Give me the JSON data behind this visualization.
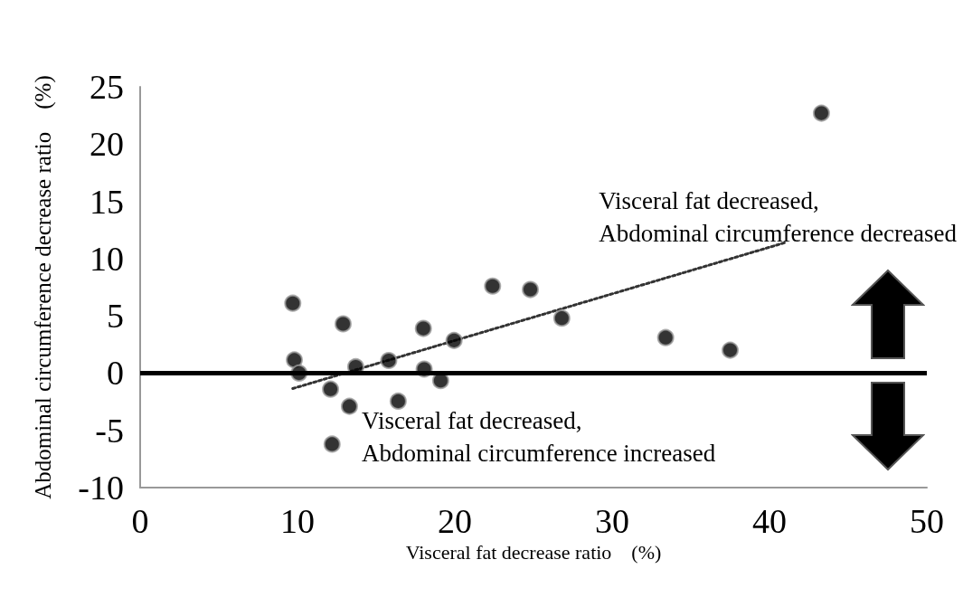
{
  "chart_data": {
    "type": "scatter",
    "xlabel": "Visceral fat decrease ratio　(%)",
    "ylabel": "Abdominal circumference decrease ratio　(%)",
    "x": [
      9.7,
      9.8,
      10.1,
      12.9,
      13.7,
      12.1,
      13.3,
      12.2,
      15.8,
      16.4,
      18.0,
      18.05,
      19.1,
      19.95,
      22.4,
      24.8,
      26.8,
      33.4,
      37.5,
      43.3
    ],
    "series": [
      {
        "color": "#000000",
        "marker": "circle",
        "values": [
          6.1,
          1.15,
          0,
          4.3,
          0.55,
          -1.4,
          -2.9,
          -6.2,
          1.1,
          -2.45,
          3.9,
          0.35,
          -0.65,
          2.85,
          7.6,
          7.3,
          4.8,
          3.1,
          2.0,
          22.7
        ]
      },
      {
        "type": "line",
        "color": "#333333",
        "marker": "none",
        "line_style": "dotted",
        "x": [
          9.7,
          41.0
        ],
        "values": [
          -1.35,
          11.4
        ]
      }
    ],
    "xlim": [
      0,
      50
    ],
    "xticks": [
      0,
      10,
      20,
      30,
      40,
      50
    ],
    "ylim": [
      -10,
      25
    ],
    "yticks": [
      -10,
      -5,
      0,
      5,
      10,
      15,
      20,
      25
    ],
    "ref_lines": [
      {
        "axis": "y",
        "value": 0,
        "color": "#000000",
        "line_style": "solid"
      }
    ],
    "annotations": [
      "Visceral fat decreased,\nAbdominal circumference decreased",
      "Visceral fat decreased,\nAbdominal circumference increased"
    ],
    "grid": false
  }
}
